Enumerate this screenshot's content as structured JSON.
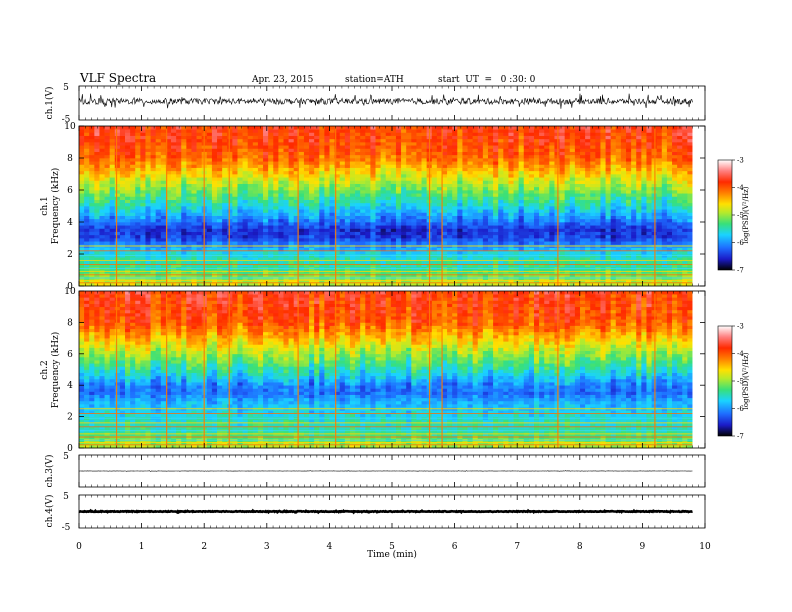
{
  "header": {
    "title": "VLF Spectra",
    "date": "Apr. 23, 2015",
    "station": "station=ATH",
    "start": "start  UT  =   0 :30: 0"
  },
  "colors": {
    "background": "#ffffff",
    "axes": "#000000",
    "spectrogram_scale": [
      "#000000",
      "#1b1bc8",
      "#1e6cff",
      "#1ad3ff",
      "#38e07a",
      "#b4ea2c",
      "#ffe000",
      "#ff8000",
      "#ff2a00",
      "#ff7f7f",
      "#ffffff"
    ]
  },
  "x_axis": {
    "label": "Time  (min)",
    "ticks": [
      "0",
      "1",
      "2",
      "3",
      "4",
      "5",
      "6",
      "7",
      "8",
      "9",
      "10"
    ],
    "range": [
      0,
      10
    ],
    "data_end": 9.8
  },
  "panels": {
    "ch1_wave": {
      "label": "ch.1(V)",
      "tick_top": "5",
      "tick_bottom": "-5"
    },
    "ch1_spec": {
      "label_top": "ch.1",
      "label_bottom": "Frequency  (kHz)",
      "ticks": [
        "0",
        "2",
        "4",
        "6",
        "8",
        "10"
      ]
    },
    "ch2_spec": {
      "label_top": "ch.2",
      "label_bottom": "Frequency  (kHz)",
      "ticks": [
        "0",
        "2",
        "4",
        "6",
        "8",
        "10"
      ]
    },
    "ch3_wave": {
      "label": "ch.3(V)",
      "tick_top": "5"
    },
    "ch4_wave": {
      "label": "ch.4(V)",
      "tick_top": "5",
      "tick_bottom": "-5"
    }
  },
  "colorbars": [
    {
      "ticks": [
        "-3",
        "-4",
        "-5",
        "-6",
        "-7"
      ],
      "label": "log(PSD)(V²/Hz)"
    },
    {
      "ticks": [
        "-3",
        "-4",
        "-5",
        "-6",
        "-7"
      ],
      "label": "log(PSD)(V²/Hz)"
    }
  ],
  "chart_data": [
    {
      "type": "line",
      "name": "ch.1(V)",
      "xlabel": "Time  (min)",
      "ylabel": "ch.1(V)",
      "xlim": [
        0,
        10
      ],
      "ylim": [
        -5,
        5
      ],
      "baseline": 0.5,
      "envelope": [
        -1.5,
        2.0
      ]
    },
    {
      "type": "heatmap",
      "name": "ch.1",
      "xlabel": "Time  (min)",
      "ylabel": "Frequency  (kHz)",
      "xlim": [
        0,
        10
      ],
      "ylim": [
        0,
        10
      ],
      "color_scale": {
        "label": "log(PSD)(V²/Hz)",
        "range": [
          -7,
          -3
        ]
      },
      "log_psd_by_frequency": {
        "frequency_khz": [
          0.2,
          1,
          2,
          3,
          3.5,
          4,
          5,
          6,
          7,
          8,
          9,
          10
        ],
        "log_psd": [
          -4.8,
          -5.3,
          -5.6,
          -6.4,
          -6.5,
          -6.2,
          -5.6,
          -5.1,
          -4.6,
          -4.1,
          -3.9,
          -3.8
        ]
      },
      "impulsive_events_min": [
        0.6,
        1.4,
        2.0,
        2.4,
        3.5,
        4.1,
        5.6,
        5.8,
        7.65,
        9.2
      ]
    },
    {
      "type": "heatmap",
      "name": "ch.2",
      "xlabel": "Time  (min)",
      "ylabel": "Frequency  (kHz)",
      "xlim": [
        0,
        10
      ],
      "ylim": [
        0,
        10
      ],
      "color_scale": {
        "label": "log(PSD)(V²/Hz)",
        "range": [
          -7,
          -3
        ]
      },
      "log_psd_by_frequency": {
        "frequency_khz": [
          0.2,
          1,
          2,
          3,
          3.5,
          4,
          5,
          6,
          7,
          8,
          9,
          10
        ],
        "log_psd": [
          -4.9,
          -5.4,
          -5.6,
          -5.9,
          -6.2,
          -6.1,
          -5.5,
          -5.0,
          -4.5,
          -4.0,
          -3.9,
          -3.8
        ]
      },
      "impulsive_events_min": [
        0.6,
        1.4,
        2.0,
        2.4,
        3.5,
        4.1,
        5.6,
        5.8,
        7.65,
        9.2
      ]
    },
    {
      "type": "line",
      "name": "ch.3(V)",
      "xlabel": "Time  (min)",
      "ylabel": "ch.3(V)",
      "xlim": [
        0,
        10
      ],
      "ylim": [
        -5,
        5
      ],
      "baseline": 0.0,
      "envelope": [
        -0.1,
        0.1
      ]
    },
    {
      "type": "line",
      "name": "ch.4(V)",
      "xlabel": "Time  (min)",
      "ylabel": "ch.4(V)",
      "xlim": [
        0,
        10
      ],
      "ylim": [
        -5,
        5
      ],
      "baseline": 0.0,
      "envelope": [
        -0.2,
        0.2
      ]
    }
  ]
}
